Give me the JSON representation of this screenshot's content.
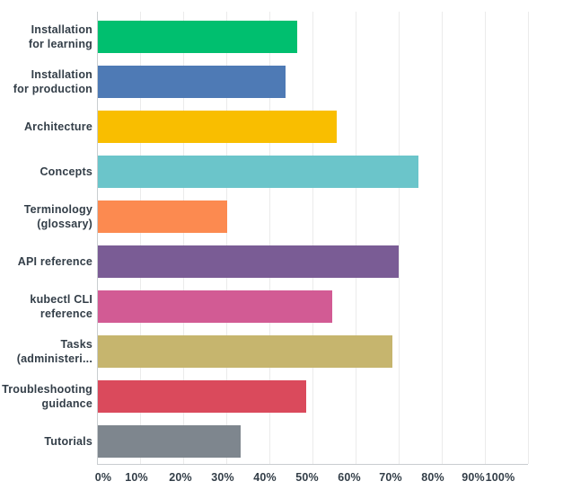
{
  "chart_data": {
    "type": "bar",
    "orientation": "horizontal",
    "categories": [
      "Installation for learning",
      "Installation for production",
      "Architecture",
      "Concepts",
      "Terminology (glossary)",
      "API reference",
      "kubectl CLI reference",
      "Tasks (administeri...",
      "Troubleshooting guidance",
      "Tutorials"
    ],
    "category_label_lines": [
      [
        "Installation",
        "for learning"
      ],
      [
        "Installation",
        "for production"
      ],
      [
        "Architecture"
      ],
      [
        "Concepts"
      ],
      [
        "Terminology",
        "(glossary)"
      ],
      [
        "API reference"
      ],
      [
        "kubectl CLI",
        "reference"
      ],
      [
        "Tasks",
        "(administeri..."
      ],
      [
        "Troubleshooting",
        "guidance"
      ],
      [
        "Tutorials"
      ]
    ],
    "values": [
      46.3,
      43.5,
      55.5,
      74.4,
      30.1,
      69.7,
      54.4,
      68.4,
      48.3,
      33.1
    ],
    "unit": "%",
    "bar_colors": [
      "#00bf6f",
      "#4e7ab5",
      "#f9be00",
      "#6bc5ca",
      "#fc8a50",
      "#7a5c95",
      "#d25b94",
      "#c6b56e",
      "#da4a5c",
      "#7e868e"
    ],
    "x_tick_labels": [
      "0%",
      "10%",
      "20%",
      "30%",
      "40%",
      "50%",
      "60%",
      "70%",
      "80%",
      "90%",
      "100%"
    ],
    "xlim": [
      0,
      100
    ],
    "grid": "vertical-gridlines",
    "legend": "none"
  },
  "colors": {
    "background": "#ffffff",
    "label_text": "#333e48",
    "gridline": "#ebebeb",
    "axis_line": "#c9cdd0"
  }
}
